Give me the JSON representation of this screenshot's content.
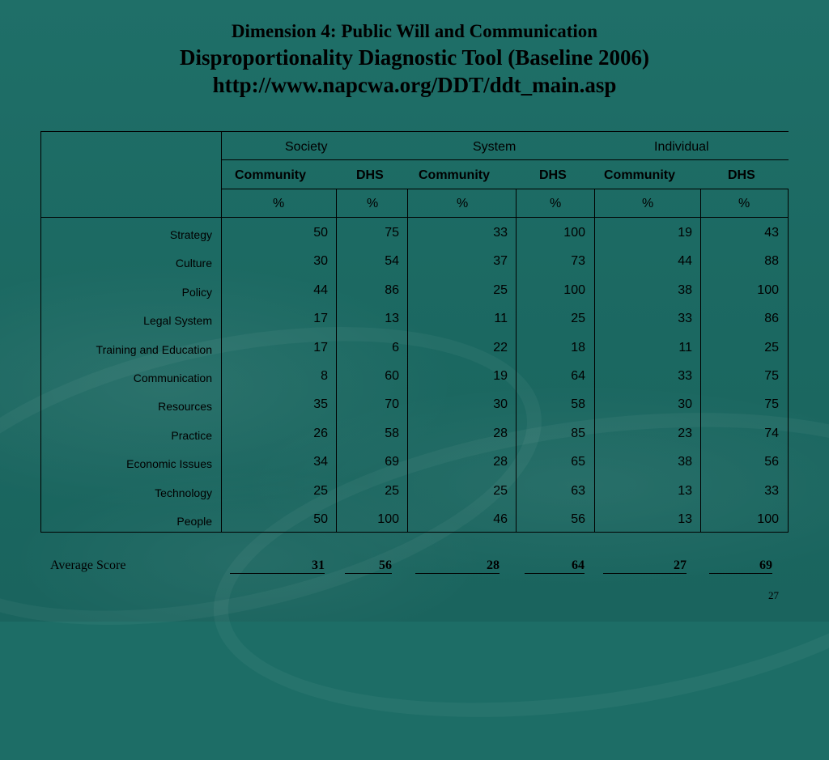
{
  "title": {
    "line1": "Dimension 4: Public Will and Communication",
    "line2": "Disproportionality Diagnostic Tool (Baseline 2006)",
    "line3": "http://www.napcwa.org/DDT/ddt_main.asp"
  },
  "table": {
    "groups": [
      "Society",
      "System",
      "Individual"
    ],
    "subheaders": [
      "Community",
      "DHS",
      "Community",
      "DHS",
      "Community",
      "DHS"
    ],
    "units": [
      "%",
      "%",
      "%",
      "%",
      "%",
      "%"
    ],
    "rows": [
      {
        "label": "Strategy",
        "values": [
          "50",
          "75",
          "33",
          "100",
          "19",
          "43"
        ]
      },
      {
        "label": "Culture",
        "values": [
          "30",
          "54",
          "37",
          "73",
          "44",
          "88"
        ]
      },
      {
        "label": "Policy",
        "values": [
          "44",
          "86",
          "25",
          "100",
          "38",
          "100"
        ]
      },
      {
        "label": "Legal System",
        "values": [
          "17",
          "13",
          "11",
          "25",
          "33",
          "86"
        ]
      },
      {
        "label": "Training and Education",
        "values": [
          "17",
          "6",
          "22",
          "18",
          "11",
          "25"
        ]
      },
      {
        "label": "Communication",
        "values": [
          "8",
          "60",
          "19",
          "64",
          "33",
          "75"
        ]
      },
      {
        "label": "Resources",
        "values": [
          "35",
          "70",
          "30",
          "58",
          "30",
          "75"
        ]
      },
      {
        "label": "Practice",
        "values": [
          "26",
          "58",
          "28",
          "85",
          "23",
          "74"
        ]
      },
      {
        "label": "Economic Issues",
        "values": [
          "34",
          "69",
          "28",
          "65",
          "38",
          "56"
        ]
      },
      {
        "label": "Technology",
        "values": [
          "25",
          "25",
          "25",
          "63",
          "13",
          "33"
        ]
      },
      {
        "label": "People",
        "values": [
          "50",
          "100",
          "46",
          "56",
          "13",
          "100"
        ]
      }
    ]
  },
  "average": {
    "label": "Average Score",
    "values": [
      "31",
      "56",
      "28",
      "64",
      "27",
      "69"
    ]
  },
  "page_number": "27"
}
